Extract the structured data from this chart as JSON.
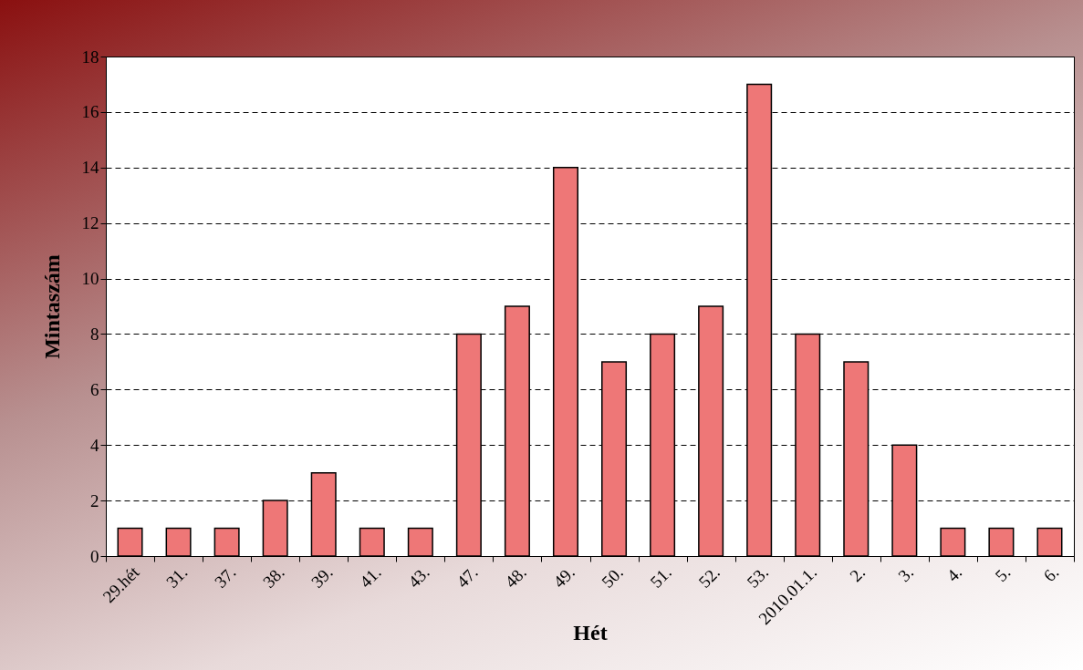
{
  "chart_data": {
    "type": "bar",
    "xlabel": "Hét",
    "ylabel": "Mintaszám",
    "categories": [
      "29.hét",
      "31.",
      "37.",
      "38.",
      "39.",
      "41.",
      "43.",
      "47.",
      "48.",
      "49.",
      "50.",
      "51.",
      "52.",
      "53.",
      "2010.01.1.",
      "2.",
      "3.",
      "4.",
      "5.",
      "6."
    ],
    "values": [
      1,
      1,
      1,
      2,
      3,
      1,
      1,
      8,
      9,
      14,
      7,
      8,
      9,
      17,
      8,
      7,
      4,
      1,
      1,
      1
    ],
    "color": "#ee7777",
    "ylim": [
      0,
      18
    ],
    "yticks": [
      0,
      2,
      4,
      6,
      8,
      10,
      12,
      14,
      16,
      18
    ],
    "grid": "y"
  }
}
